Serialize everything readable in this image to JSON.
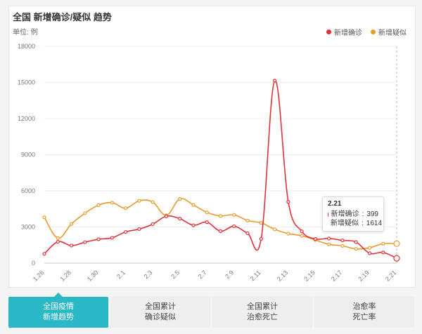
{
  "chart_data": {
    "type": "line",
    "title": "全国 新增确诊/疑似 趋势",
    "unit_label": "单位: 例",
    "categories": [
      "1.26",
      "1.27",
      "1.28",
      "1.29",
      "1.30",
      "1.31",
      "2.1",
      "2.2",
      "2.3",
      "2.4",
      "2.5",
      "2.6",
      "2.7",
      "2.8",
      "2.9",
      "2.10",
      "2.11",
      "2.12",
      "2.13",
      "2.14",
      "2.15",
      "2.16",
      "2.17",
      "2.18",
      "2.19",
      "2.20",
      "2.21"
    ],
    "x_tick_labels": [
      "1.26",
      "1.28",
      "1.30",
      "2.1",
      "2.3",
      "2.5",
      "2.7",
      "2.9",
      "2.11",
      "2.13",
      "2.15",
      "2.17",
      "2.19",
      "2.21"
    ],
    "y_ticks": [
      0,
      3000,
      6000,
      9000,
      12000,
      15000,
      18000
    ],
    "ylim": [
      0,
      18000
    ],
    "series": [
      {
        "name": "新增确诊",
        "color": "#e0323c",
        "values": [
          769,
          1771,
          1459,
          1737,
          1982,
          2102,
          2590,
          2829,
          3235,
          3887,
          3694,
          3143,
          3399,
          2656,
          3062,
          2478,
          2015,
          15152,
          5090,
          2641,
          2009,
          2048,
          1886,
          1749,
          820,
          889,
          399
        ]
      },
      {
        "name": "新增疑似",
        "color": "#e89a2b",
        "values": [
          3806,
          2077,
          3248,
          4148,
          4812,
          5019,
          4562,
          5173,
          5072,
          3971,
          5328,
          4833,
          4214,
          3916,
          4008,
          3536,
          3342,
          2807,
          2450,
          2277,
          1918,
          1563,
          1432,
          1185,
          1277,
          1614,
          1614
        ]
      }
    ],
    "tooltip": {
      "title": "2.21",
      "rows": [
        {
          "name": "新增确诊",
          "value": "399"
        },
        {
          "name": "新增疑似",
          "value": "1614"
        }
      ]
    },
    "legend_position": "top-right"
  },
  "tabs": [
    {
      "label": "全国疫情\n新增趋势",
      "active": true
    },
    {
      "label": "全国累计\n确诊疑似",
      "active": false
    },
    {
      "label": "全国累计\n治愈死亡",
      "active": false
    },
    {
      "label": "治愈率\n死亡率",
      "active": false
    }
  ]
}
